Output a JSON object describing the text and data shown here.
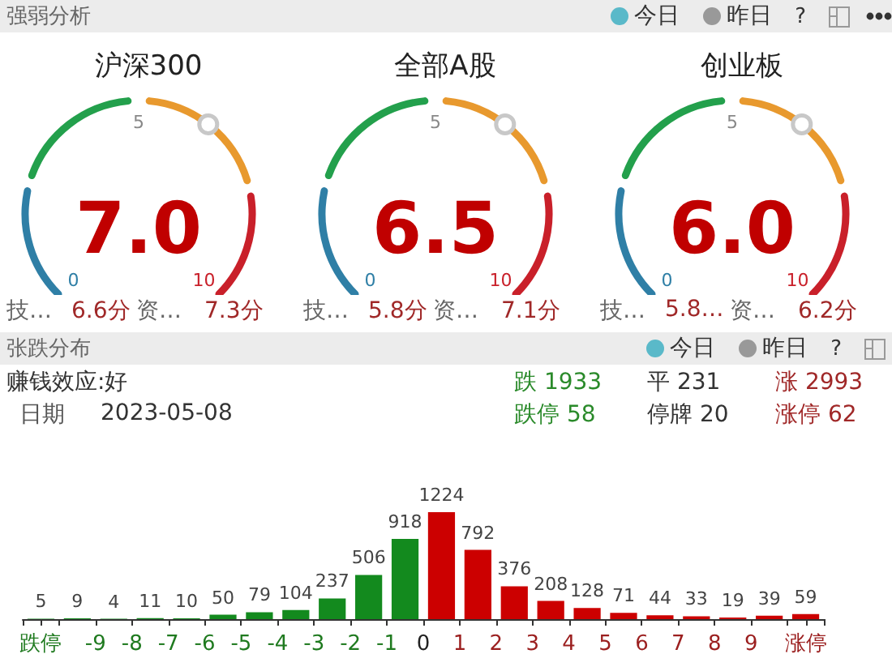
{
  "chart_data": [
    {
      "type": "other",
      "title": "沪深300",
      "annotations": [
        "强弱分析",
        "今日",
        "昨日",
        "?",
        "0",
        "5",
        "10",
        "7.0",
        "技…",
        "6.6分",
        "资…",
        "7.3分"
      ]
    },
    {
      "type": "other",
      "title": "全部A股",
      "annotations": [
        "0",
        "5",
        "10",
        "6.5",
        "技…",
        "5.8分",
        "资…",
        "7.1分"
      ]
    },
    {
      "type": "other",
      "title": "创业板",
      "annotations": [
        "0",
        "5",
        "10",
        "6.0",
        "技…",
        "5.8…",
        "资…",
        "6.2分"
      ]
    },
    {
      "type": "bar",
      "data_labels": true,
      "x": [
        -10.5,
        -9.5,
        -8.5,
        -7.5,
        -6.5,
        -5.5,
        -4.5,
        -3.5,
        -2.5,
        -1.5,
        -0.5,
        0.5,
        1.5,
        2.5,
        3.5,
        4.5,
        5.5,
        6.5,
        7.5,
        8.5,
        9.5,
        10.5
      ],
      "values": [
        5,
        9,
        4,
        11,
        10,
        50,
        79,
        104,
        237,
        506,
        918,
        1224,
        792,
        376,
        208,
        128,
        71,
        44,
        33,
        19,
        39,
        59
      ],
      "colors": [
        "#138a1e",
        "#138a1e",
        "#138a1e",
        "#138a1e",
        "#138a1e",
        "#138a1e",
        "#138a1e",
        "#138a1e",
        "#138a1e",
        "#138a1e",
        "#138a1e",
        "#cc0000",
        "#cc0000",
        "#cc0000",
        "#cc0000",
        "#cc0000",
        "#cc0000",
        "#cc0000",
        "#cc0000",
        "#cc0000",
        "#cc0000",
        "#cc0000"
      ],
      "xlim": [
        -11,
        11
      ],
      "xticks": [
        {
          "value": -11,
          "label": null
        },
        {
          "value": -10.5,
          "label": "跌停"
        },
        {
          "value": -10,
          "label": null
        },
        -9,
        -8,
        -7,
        -6,
        -5,
        -4,
        -3,
        -2,
        -1,
        0,
        1,
        2,
        3,
        4,
        5,
        6,
        7,
        8,
        9,
        {
          "value": 10,
          "label": null
        },
        {
          "value": 10.5,
          "label": "涨停"
        },
        {
          "value": 11,
          "label": null
        }
      ],
      "annotations": [
        "张跌分布",
        "今日",
        "昨日",
        "?",
        "赚钱效应:好",
        "日期",
        "2023-05-08",
        "跌 1933",
        "平 231",
        "涨 2993",
        "跌停 58",
        "停牌 20",
        "涨停 62"
      ]
    }
  ]
}
